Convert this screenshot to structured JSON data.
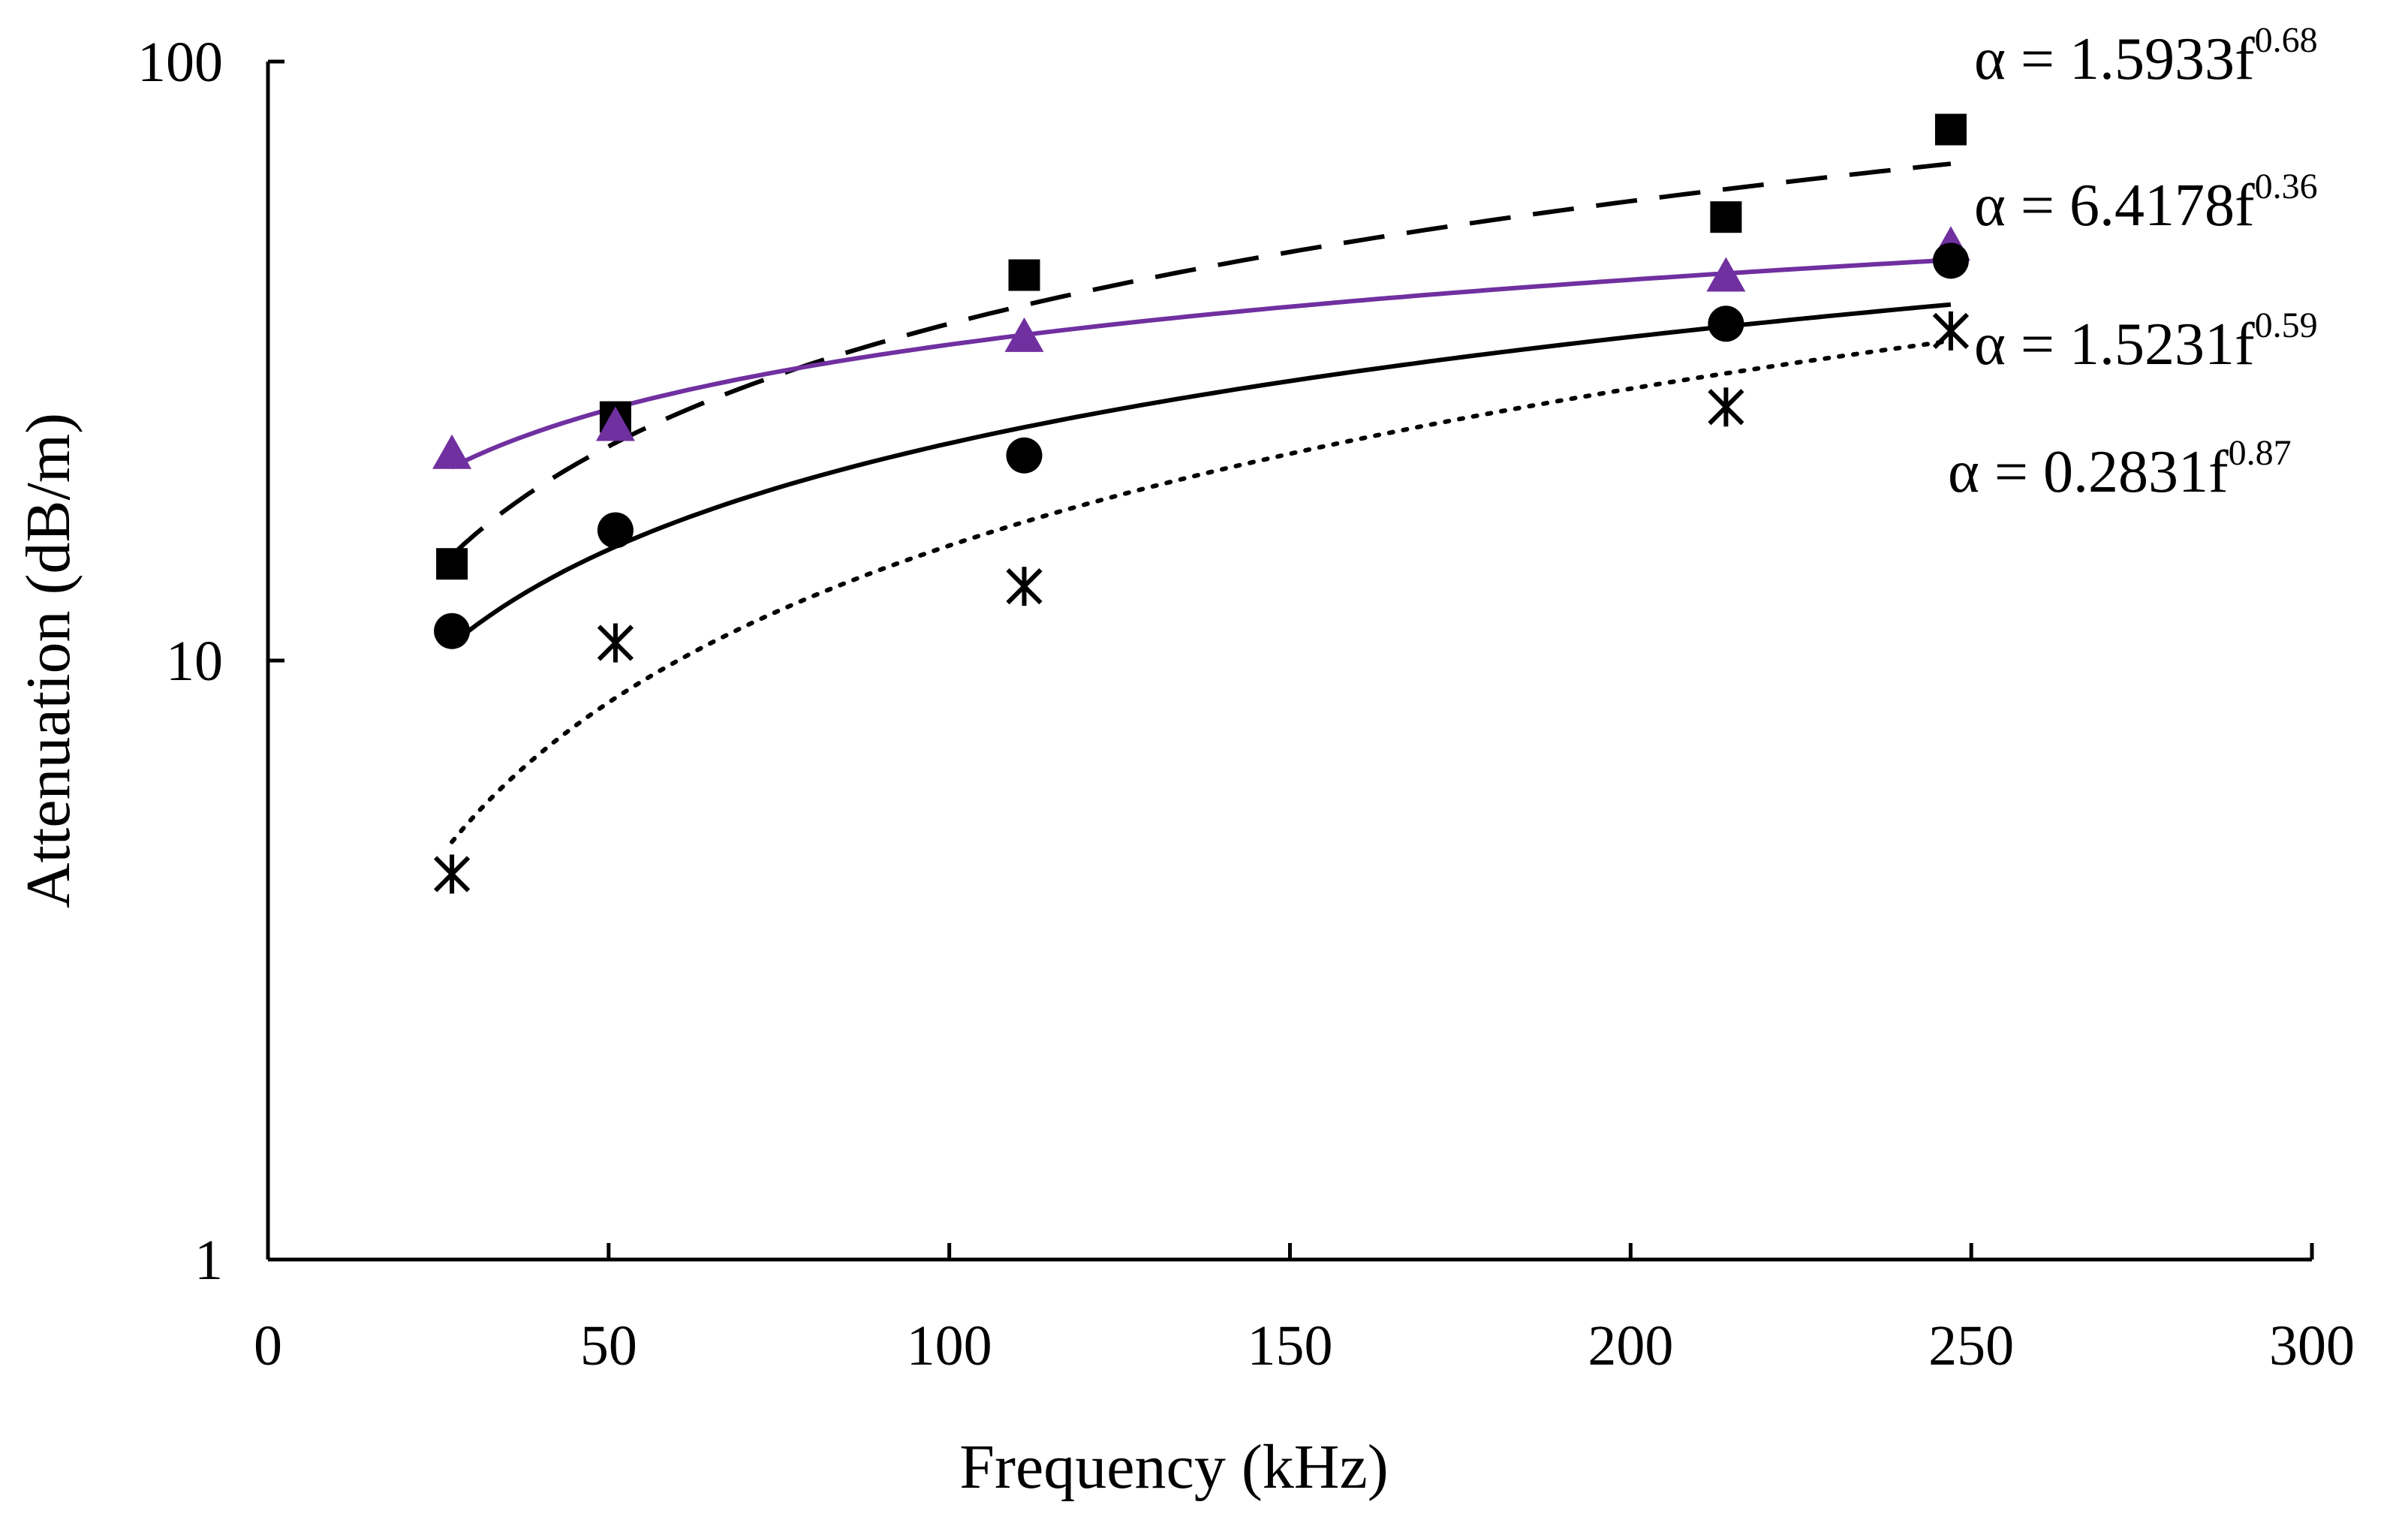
{
  "chart_data": {
    "type": "scatter",
    "title": "",
    "xlabel": "Frequency (kHz)",
    "ylabel": "Attenuation (dB/m)",
    "xlim": [
      0,
      300
    ],
    "ylim": [
      1,
      100
    ],
    "y_scale": "log",
    "x_ticks": [
      "0",
      "50",
      "100",
      "150",
      "200",
      "250",
      "300"
    ],
    "y_ticks": [
      "1",
      "10",
      "100"
    ],
    "grid": false,
    "legend": "none",
    "series": [
      {
        "marker": "square",
        "color": "#000000",
        "fit_line": "dashed",
        "x": [
          27,
          51,
          111,
          214,
          247
        ],
        "y": [
          14.5,
          25.5,
          44,
          55,
          77
        ],
        "fit": {
          "coef": 1.5933,
          "exp": 0.68,
          "label": "α = 1.5933f",
          "exp_label": "0.68"
        }
      },
      {
        "marker": "triangle",
        "color": "#7030A0",
        "fit_line": "solid",
        "x": [
          27,
          51,
          111,
          214,
          247
        ],
        "y": [
          22,
          24.5,
          34.5,
          43.5,
          49
        ],
        "fit": {
          "coef": 6.4178,
          "exp": 0.36,
          "label": "α = 6.4178f",
          "exp_label": "0.36"
        }
      },
      {
        "marker": "circle",
        "color": "#000000",
        "fit_line": "solid",
        "x": [
          27,
          51,
          111,
          214,
          247
        ],
        "y": [
          11.2,
          16.5,
          22,
          36.5,
          46.5
        ],
        "fit": {
          "coef": 1.5231,
          "exp": 0.59,
          "label": "α = 1.5231f",
          "exp_label": "0.59"
        }
      },
      {
        "marker": "asterisk",
        "color": "#000000",
        "fit_line": "dotted",
        "x": [
          27,
          51,
          111,
          214,
          247
        ],
        "y": [
          4.4,
          10.7,
          13.3,
          26.5,
          35.5
        ],
        "fit": {
          "coef": 0.2831,
          "exp": 0.87,
          "label": "α = 0.2831f",
          "exp_label": "0.87"
        }
      }
    ]
  }
}
